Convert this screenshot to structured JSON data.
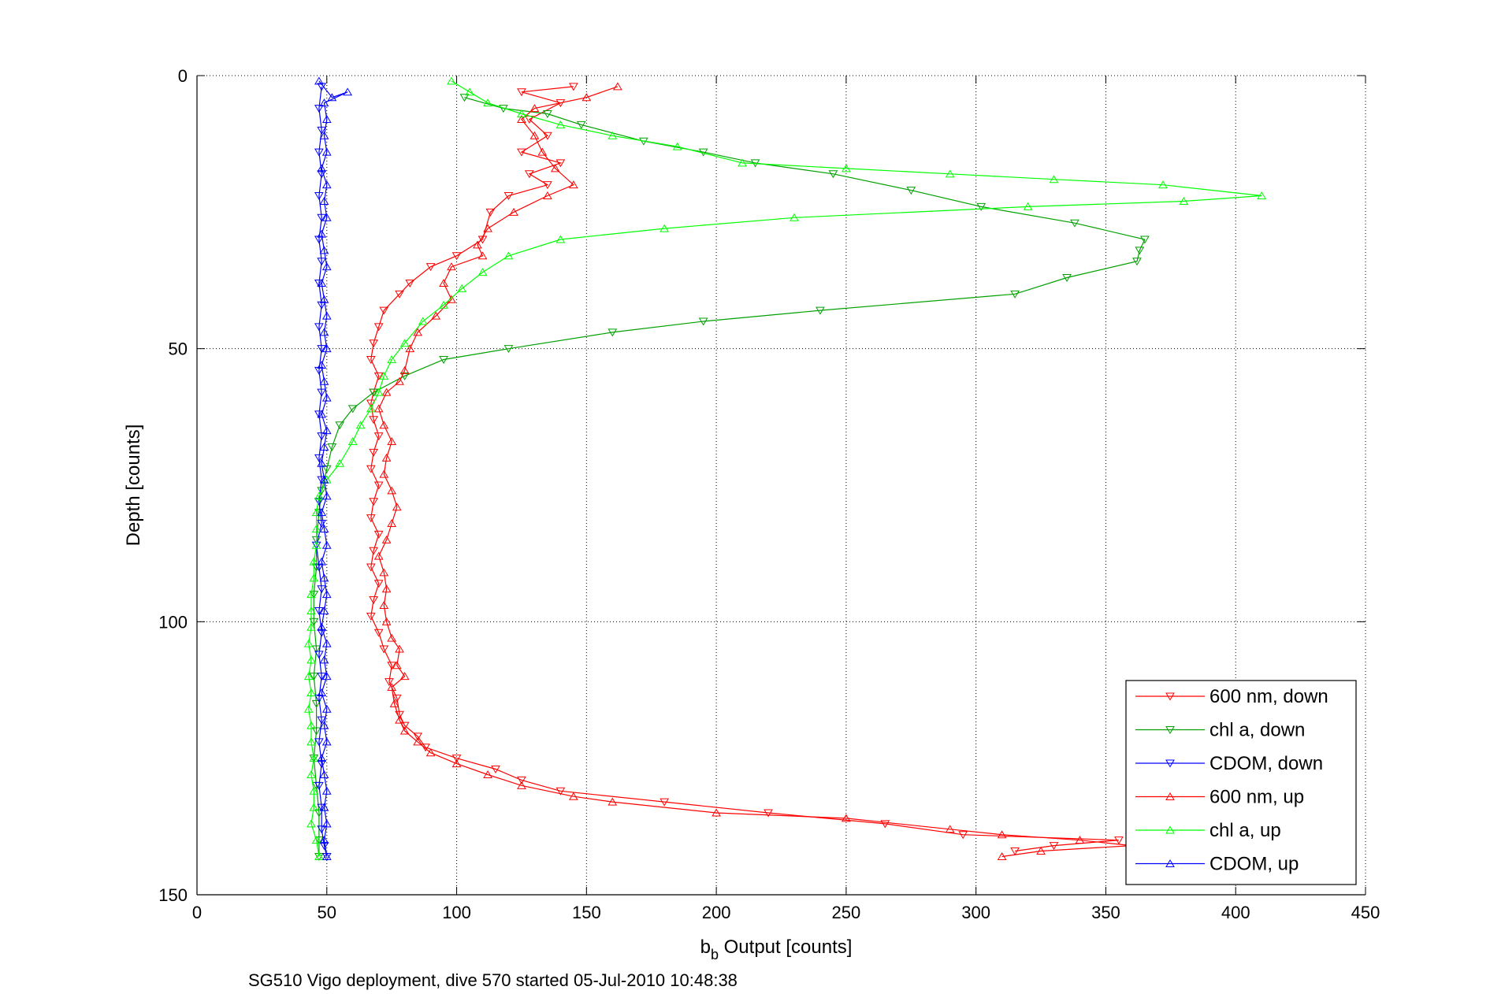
{
  "chart_data": {
    "type": "line",
    "title": "",
    "xlabel_main": "b",
    "xlabel_sub": "b",
    "xlabel_rest": " Output [counts]",
    "ylabel": "Depth [counts]",
    "caption": "SG510 Vigo deployment, dive 570 started 05-Jul-2010 10:48:38",
    "xlim": [
      0,
      450
    ],
    "ylim": [
      0,
      150
    ],
    "y_reversed": true,
    "xticks": [
      0,
      50,
      100,
      150,
      200,
      250,
      300,
      350,
      400,
      450
    ],
    "yticks": [
      0,
      50,
      100,
      150
    ],
    "grid": true,
    "legend_position": "bottom-right",
    "series": [
      {
        "name": "600 nm, down",
        "color": "#ff0000",
        "marker": "triangle-down",
        "points": [
          [
            145,
            2
          ],
          [
            125,
            3
          ],
          [
            140,
            5
          ],
          [
            128,
            8
          ],
          [
            135,
            11
          ],
          [
            125,
            14
          ],
          [
            140,
            16
          ],
          [
            128,
            18
          ],
          [
            135,
            20
          ],
          [
            120,
            22
          ],
          [
            113,
            25
          ],
          [
            110,
            30
          ],
          [
            100,
            33
          ],
          [
            90,
            35
          ],
          [
            82,
            38
          ],
          [
            78,
            40
          ],
          [
            72,
            43
          ],
          [
            70,
            46
          ],
          [
            68,
            49
          ],
          [
            67,
            52
          ],
          [
            70,
            55
          ],
          [
            68,
            58
          ],
          [
            67,
            60
          ],
          [
            68,
            63
          ],
          [
            70,
            66
          ],
          [
            68,
            69
          ],
          [
            67,
            72
          ],
          [
            70,
            75
          ],
          [
            68,
            78
          ],
          [
            67,
            81
          ],
          [
            70,
            84
          ],
          [
            68,
            87
          ],
          [
            67,
            90
          ],
          [
            70,
            93
          ],
          [
            68,
            96
          ],
          [
            67,
            99
          ],
          [
            70,
            102
          ],
          [
            72,
            105
          ],
          [
            75,
            108
          ],
          [
            74,
            111
          ],
          [
            77,
            114
          ],
          [
            78,
            117
          ],
          [
            80,
            119
          ],
          [
            85,
            121
          ],
          [
            88,
            123
          ],
          [
            100,
            125
          ],
          [
            115,
            127
          ],
          [
            125,
            129
          ],
          [
            140,
            131
          ],
          [
            180,
            133
          ],
          [
            220,
            135
          ],
          [
            265,
            137
          ],
          [
            295,
            139
          ],
          [
            355,
            140
          ],
          [
            330,
            141
          ],
          [
            315,
            142
          ]
        ]
      },
      {
        "name": "chl a, down",
        "color": "#00a000",
        "marker": "triangle-down",
        "points": [
          [
            103,
            4
          ],
          [
            118,
            6
          ],
          [
            135,
            7
          ],
          [
            148,
            9
          ],
          [
            172,
            12
          ],
          [
            195,
            14
          ],
          [
            215,
            16
          ],
          [
            245,
            18
          ],
          [
            275,
            21
          ],
          [
            302,
            24
          ],
          [
            338,
            27
          ],
          [
            365,
            30
          ],
          [
            363,
            32
          ],
          [
            362,
            34
          ],
          [
            335,
            37
          ],
          [
            315,
            40
          ],
          [
            240,
            43
          ],
          [
            195,
            45
          ],
          [
            160,
            47
          ],
          [
            120,
            50
          ],
          [
            95,
            52
          ],
          [
            80,
            55
          ],
          [
            68,
            58
          ],
          [
            60,
            61
          ],
          [
            55,
            64
          ],
          [
            52,
            68
          ],
          [
            50,
            72
          ],
          [
            48,
            76
          ],
          [
            47,
            80
          ],
          [
            46,
            85
          ],
          [
            46,
            90
          ],
          [
            45,
            95
          ],
          [
            45,
            100
          ],
          [
            46,
            105
          ],
          [
            45,
            110
          ],
          [
            46,
            115
          ],
          [
            46,
            120
          ],
          [
            45,
            125
          ],
          [
            46,
            130
          ],
          [
            47,
            135
          ],
          [
            47,
            140
          ],
          [
            47,
            143
          ]
        ]
      },
      {
        "name": "CDOM, down",
        "color": "#0000ff",
        "marker": "triangle-down",
        "points": [
          [
            48,
            2
          ],
          [
            47,
            6
          ],
          [
            48,
            10
          ],
          [
            47,
            14
          ],
          [
            48,
            18
          ],
          [
            47,
            22
          ],
          [
            48,
            26
          ],
          [
            47,
            30
          ],
          [
            48,
            34
          ],
          [
            47,
            38
          ],
          [
            48,
            42
          ],
          [
            47,
            46
          ],
          [
            48,
            50
          ],
          [
            47,
            54
          ],
          [
            48,
            58
          ],
          [
            47,
            62
          ],
          [
            48,
            66
          ],
          [
            47,
            70
          ],
          [
            48,
            74
          ],
          [
            47,
            78
          ],
          [
            48,
            82
          ],
          [
            46,
            86
          ],
          [
            47,
            90
          ],
          [
            48,
            94
          ],
          [
            47,
            98
          ],
          [
            48,
            102
          ],
          [
            47,
            106
          ],
          [
            48,
            110
          ],
          [
            47,
            114
          ],
          [
            48,
            118
          ],
          [
            47,
            122
          ],
          [
            48,
            126
          ],
          [
            47,
            130
          ],
          [
            48,
            134
          ],
          [
            48,
            138
          ],
          [
            49,
            141
          ],
          [
            50,
            143
          ]
        ]
      },
      {
        "name": "600 nm, up",
        "color": "#ff0000",
        "marker": "triangle-up",
        "points": [
          [
            310,
            143
          ],
          [
            325,
            142
          ],
          [
            360,
            141
          ],
          [
            340,
            140
          ],
          [
            310,
            139
          ],
          [
            290,
            138
          ],
          [
            250,
            136
          ],
          [
            200,
            135
          ],
          [
            160,
            133
          ],
          [
            145,
            132
          ],
          [
            125,
            130
          ],
          [
            112,
            128
          ],
          [
            100,
            126
          ],
          [
            90,
            124
          ],
          [
            85,
            122
          ],
          [
            80,
            120
          ],
          [
            78,
            118
          ],
          [
            76,
            115
          ],
          [
            75,
            112
          ],
          [
            80,
            110
          ],
          [
            77,
            108
          ],
          [
            78,
            105
          ],
          [
            75,
            103
          ],
          [
            73,
            100
          ],
          [
            72,
            97
          ],
          [
            73,
            94
          ],
          [
            72,
            91
          ],
          [
            70,
            88
          ],
          [
            73,
            85
          ],
          [
            75,
            82
          ],
          [
            77,
            79
          ],
          [
            75,
            76
          ],
          [
            72,
            73
          ],
          [
            73,
            70
          ],
          [
            75,
            67
          ],
          [
            72,
            64
          ],
          [
            70,
            61
          ],
          [
            73,
            58
          ],
          [
            78,
            56
          ],
          [
            80,
            54
          ],
          [
            82,
            50
          ],
          [
            85,
            47
          ],
          [
            92,
            44
          ],
          [
            98,
            41
          ],
          [
            95,
            38
          ],
          [
            98,
            35
          ],
          [
            110,
            33
          ],
          [
            108,
            31
          ],
          [
            112,
            28
          ],
          [
            122,
            25
          ],
          [
            135,
            22
          ],
          [
            145,
            20
          ],
          [
            138,
            17
          ],
          [
            133,
            14
          ],
          [
            130,
            11
          ],
          [
            125,
            8
          ],
          [
            130,
            6
          ],
          [
            150,
            4
          ],
          [
            162,
            2
          ]
        ]
      },
      {
        "name": "chl a, up",
        "color": "#00ff00",
        "marker": "triangle-up",
        "points": [
          [
            47,
            143
          ],
          [
            46,
            140
          ],
          [
            44,
            137
          ],
          [
            45,
            134
          ],
          [
            45,
            131
          ],
          [
            44,
            128
          ],
          [
            45,
            125
          ],
          [
            44,
            122
          ],
          [
            44,
            119
          ],
          [
            43,
            116
          ],
          [
            44,
            113
          ],
          [
            43,
            110
          ],
          [
            44,
            107
          ],
          [
            43,
            104
          ],
          [
            44,
            101
          ],
          [
            44,
            98
          ],
          [
            44,
            95
          ],
          [
            45,
            92
          ],
          [
            45,
            89
          ],
          [
            46,
            86
          ],
          [
            46,
            83
          ],
          [
            46,
            80
          ],
          [
            47,
            77
          ],
          [
            50,
            74
          ],
          [
            55,
            71
          ],
          [
            60,
            67
          ],
          [
            63,
            64
          ],
          [
            67,
            61
          ],
          [
            70,
            58
          ],
          [
            72,
            55
          ],
          [
            75,
            52
          ],
          [
            80,
            49
          ],
          [
            87,
            45
          ],
          [
            95,
            42
          ],
          [
            102,
            39
          ],
          [
            110,
            36
          ],
          [
            120,
            33
          ],
          [
            140,
            30
          ],
          [
            180,
            28
          ],
          [
            230,
            26
          ],
          [
            320,
            24
          ],
          [
            380,
            23
          ],
          [
            410,
            22
          ],
          [
            372,
            20
          ],
          [
            330,
            19
          ],
          [
            290,
            18
          ],
          [
            250,
            17
          ],
          [
            210,
            16
          ],
          [
            185,
            13
          ],
          [
            160,
            11
          ],
          [
            140,
            9
          ],
          [
            125,
            7
          ],
          [
            112,
            5
          ],
          [
            105,
            3
          ],
          [
            98,
            1
          ]
        ]
      },
      {
        "name": "CDOM, up",
        "color": "#0000ff",
        "marker": "triangle-up",
        "points": [
          [
            50,
            143
          ],
          [
            49,
            140
          ],
          [
            50,
            137
          ],
          [
            49,
            134
          ],
          [
            50,
            131
          ],
          [
            49,
            128
          ],
          [
            48,
            125
          ],
          [
            50,
            122
          ],
          [
            49,
            119
          ],
          [
            50,
            116
          ],
          [
            48,
            113
          ],
          [
            50,
            110
          ],
          [
            49,
            107
          ],
          [
            50,
            104
          ],
          [
            48,
            101
          ],
          [
            49,
            98
          ],
          [
            50,
            95
          ],
          [
            49,
            92
          ],
          [
            48,
            89
          ],
          [
            50,
            86
          ],
          [
            49,
            83
          ],
          [
            48,
            80
          ],
          [
            50,
            77
          ],
          [
            49,
            74
          ],
          [
            48,
            71
          ],
          [
            49,
            68
          ],
          [
            50,
            65
          ],
          [
            48,
            62
          ],
          [
            50,
            59
          ],
          [
            49,
            56
          ],
          [
            48,
            53
          ],
          [
            50,
            50
          ],
          [
            49,
            47
          ],
          [
            50,
            44
          ],
          [
            49,
            41
          ],
          [
            48,
            38
          ],
          [
            50,
            35
          ],
          [
            49,
            32
          ],
          [
            48,
            29
          ],
          [
            50,
            26
          ],
          [
            49,
            23
          ],
          [
            50,
            20
          ],
          [
            48,
            17
          ],
          [
            50,
            14
          ],
          [
            49,
            11
          ],
          [
            50,
            8
          ],
          [
            49,
            5
          ],
          [
            58,
            3
          ],
          [
            52,
            4
          ],
          [
            47,
            1
          ]
        ]
      }
    ]
  }
}
